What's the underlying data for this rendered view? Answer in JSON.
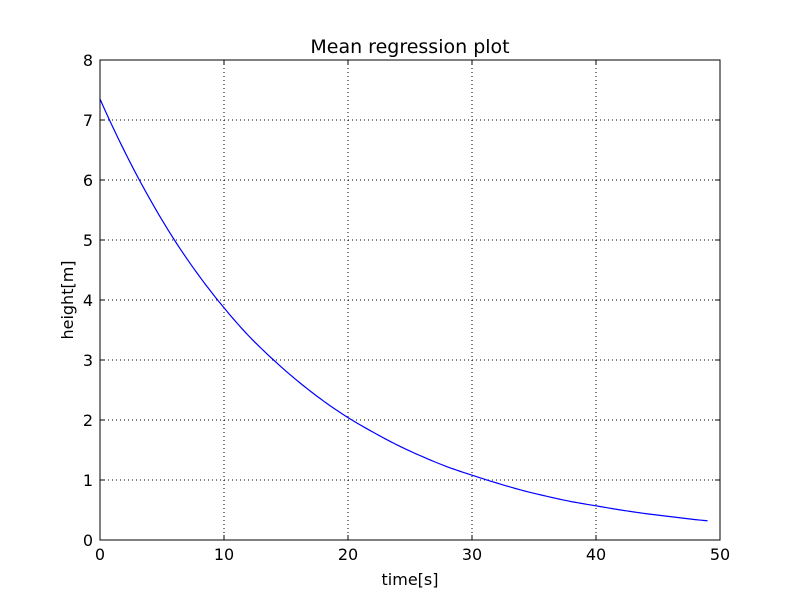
{
  "chart_data": {
    "type": "line",
    "title": "Mean regression plot",
    "xlabel": "time[s]",
    "ylabel": "height[m]",
    "xlim": [
      0,
      50
    ],
    "ylim": [
      0,
      8
    ],
    "xticks": [
      0,
      10,
      20,
      30,
      40,
      50
    ],
    "yticks": [
      0,
      1,
      2,
      3,
      4,
      5,
      6,
      7,
      8
    ],
    "grid": true,
    "series": [
      {
        "color": "#0000ff",
        "x": [
          0,
          2,
          4,
          6,
          8,
          10,
          12,
          14,
          16,
          18,
          20,
          22,
          24,
          26,
          28,
          30,
          32,
          34,
          36,
          38,
          40,
          42,
          44,
          46,
          48,
          49
        ],
        "y": [
          7.35,
          6.47,
          5.69,
          5.0,
          4.4,
          3.87,
          3.4,
          3.0,
          2.64,
          2.32,
          2.04,
          1.8,
          1.58,
          1.39,
          1.22,
          1.08,
          0.95,
          0.83,
          0.73,
          0.64,
          0.57,
          0.5,
          0.44,
          0.39,
          0.34,
          0.32
        ]
      }
    ]
  }
}
